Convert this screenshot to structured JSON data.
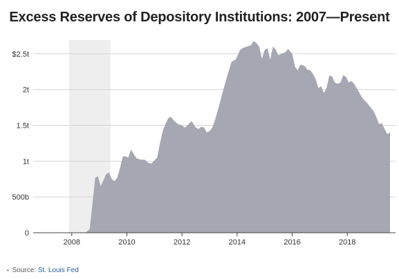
{
  "chart_data": {
    "type": "area",
    "title": "Excess Reserves of Depository Institutions: 2007—Present",
    "xlabel": "",
    "ylabel": "",
    "xlim": [
      2006.6,
      2019.75
    ],
    "ylim": [
      0,
      2.75
    ],
    "x_ticks": [
      {
        "value": 2008,
        "label": "2008"
      },
      {
        "value": 2010,
        "label": "2010"
      },
      {
        "value": 2012,
        "label": "2012"
      },
      {
        "value": 2014,
        "label": "2014"
      },
      {
        "value": 2016,
        "label": "2016"
      },
      {
        "value": 2018,
        "label": "2018"
      }
    ],
    "y_ticks": [
      {
        "value": 0,
        "label": "0"
      },
      {
        "value": 0.5,
        "label": "500b"
      },
      {
        "value": 1,
        "label": "1t"
      },
      {
        "value": 1.5,
        "label": "1.5t"
      },
      {
        "value": 2,
        "label": "2t"
      },
      {
        "value": 2.5,
        "label": "$2.5t"
      }
    ],
    "grid": true,
    "recession_shading": {
      "start": 2007.9,
      "end": 2009.4,
      "color": "#eeeeee"
    },
    "area_color": "#a5a7b2",
    "series": [
      {
        "x": [
          2007.0,
          2008.5,
          2008.65,
          2008.75,
          2008.85,
          2008.95,
          2009.05,
          2009.15,
          2009.25,
          2009.35,
          2009.45,
          2009.55,
          2009.65,
          2009.75,
          2009.85,
          2009.95,
          2010.05,
          2010.15,
          2010.25,
          2010.35,
          2010.5,
          2010.65,
          2010.8,
          2010.9,
          2011.0,
          2011.1,
          2011.2,
          2011.3,
          2011.4,
          2011.5,
          2011.6,
          2011.7,
          2011.85,
          2012.0,
          2012.1,
          2012.2,
          2012.35,
          2012.5,
          2012.6,
          2012.7,
          2012.8,
          2012.9,
          2013.0,
          2013.1,
          2013.2,
          2013.35,
          2013.5,
          2013.65,
          2013.8,
          2013.95,
          2014.1,
          2014.2,
          2014.35,
          2014.5,
          2014.6,
          2014.7,
          2014.8,
          2014.9,
          2015.0,
          2015.1,
          2015.2,
          2015.3,
          2015.4,
          2015.5,
          2015.6,
          2015.75,
          2015.85,
          2016.0,
          2016.1,
          2016.2,
          2016.3,
          2016.45,
          2016.55,
          2016.65,
          2016.75,
          2016.85,
          2016.95,
          2017.05,
          2017.15,
          2017.25,
          2017.35,
          2017.45,
          2017.55,
          2017.65,
          2017.75,
          2017.85,
          2017.95,
          2018.05,
          2018.15,
          2018.25,
          2018.4,
          2018.55,
          2018.7,
          2018.85,
          2018.95,
          2019.05,
          2019.15,
          2019.25,
          2019.35,
          2019.45,
          2019.55
        ],
        "values": [
          0.0,
          0.0,
          0.05,
          0.4,
          0.77,
          0.79,
          0.65,
          0.73,
          0.82,
          0.84,
          0.75,
          0.72,
          0.77,
          0.9,
          1.06,
          1.07,
          1.05,
          1.16,
          1.1,
          1.04,
          1.02,
          1.02,
          0.97,
          0.97,
          1.01,
          1.05,
          1.25,
          1.42,
          1.52,
          1.6,
          1.62,
          1.57,
          1.52,
          1.5,
          1.47,
          1.5,
          1.56,
          1.47,
          1.45,
          1.48,
          1.47,
          1.4,
          1.42,
          1.47,
          1.58,
          1.78,
          2.0,
          2.2,
          2.39,
          2.42,
          2.55,
          2.58,
          2.6,
          2.62,
          2.68,
          2.65,
          2.6,
          2.43,
          2.55,
          2.58,
          2.42,
          2.6,
          2.56,
          2.48,
          2.5,
          2.52,
          2.57,
          2.5,
          2.32,
          2.27,
          2.35,
          2.33,
          2.28,
          2.27,
          2.22,
          2.15,
          2.02,
          2.05,
          1.95,
          2.03,
          2.2,
          2.18,
          2.1,
          2.08,
          2.1,
          2.2,
          2.18,
          2.1,
          2.12,
          2.08,
          1.98,
          1.88,
          1.82,
          1.75,
          1.7,
          1.62,
          1.52,
          1.53,
          1.45,
          1.38,
          1.4
        ]
      }
    ]
  },
  "source": {
    "prefix": "Source:",
    "link_text": "St. Louis Fed"
  }
}
